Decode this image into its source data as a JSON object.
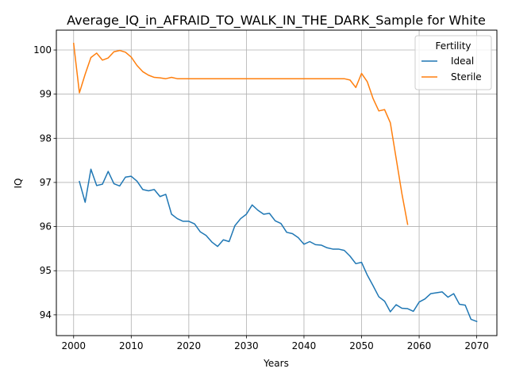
{
  "chart_data": {
    "type": "line",
    "title": "Average_IQ_in_AFRAID_TO_WALK_IN_THE_DARK_Sample for White",
    "xlabel": "Years",
    "ylabel": "IQ",
    "xlim": [
      1997,
      2073.5
    ],
    "ylim": [
      93.53,
      100.45
    ],
    "grid": true,
    "legend": {
      "title": "Fertility",
      "placement": "top-right"
    },
    "x_ticks": [
      2000,
      2010,
      2020,
      2030,
      2040,
      2050,
      2060,
      2070
    ],
    "y_ticks": [
      94,
      95,
      96,
      97,
      98,
      99,
      100
    ],
    "series": [
      {
        "name": "Ideal",
        "color": "#1f77b4",
        "x": [
          2001,
          2002,
          2003,
          2004,
          2005,
          2006,
          2007,
          2008,
          2009,
          2010,
          2011,
          2012,
          2013,
          2014,
          2015,
          2016,
          2017,
          2018,
          2019,
          2020,
          2021,
          2022,
          2023,
          2024,
          2025,
          2026,
          2027,
          2028,
          2029,
          2030,
          2031,
          2032,
          2033,
          2034,
          2035,
          2036,
          2037,
          2038,
          2039,
          2040,
          2041,
          2042,
          2043,
          2044,
          2045,
          2046,
          2047,
          2048,
          2049,
          2050,
          2051,
          2052,
          2053,
          2054,
          2055,
          2056,
          2057,
          2058,
          2059,
          2060,
          2061,
          2062,
          2063,
          2064,
          2065,
          2066,
          2067,
          2068,
          2069,
          2070
        ],
        "values": [
          97.02,
          96.55,
          97.3,
          96.93,
          96.96,
          97.25,
          96.97,
          96.92,
          97.12,
          97.14,
          97.03,
          96.84,
          96.81,
          96.84,
          96.68,
          96.73,
          96.28,
          96.18,
          96.12,
          96.12,
          96.06,
          95.88,
          95.8,
          95.65,
          95.55,
          95.7,
          95.66,
          96.02,
          96.18,
          96.28,
          96.49,
          96.37,
          96.28,
          96.3,
          96.13,
          96.07,
          95.87,
          95.84,
          95.75,
          95.6,
          95.66,
          95.59,
          95.58,
          95.52,
          95.49,
          95.49,
          95.46,
          95.33,
          95.16,
          95.19,
          94.9,
          94.66,
          94.41,
          94.31,
          94.07,
          94.23,
          94.15,
          94.14,
          94.08,
          94.29,
          94.36,
          94.48,
          94.5,
          94.52,
          94.4,
          94.48,
          94.24,
          94.22,
          93.9,
          93.85
        ]
      },
      {
        "name": "Sterile",
        "color": "#ff7f0e",
        "x": [
          2000,
          2001,
          2002,
          2003,
          2004,
          2005,
          2006,
          2007,
          2008,
          2009,
          2010,
          2011,
          2012,
          2013,
          2014,
          2015,
          2016,
          2017,
          2018,
          2019,
          2020,
          2021,
          2022,
          2023,
          2024,
          2025,
          2026,
          2027,
          2028,
          2029,
          2030,
          2031,
          2032,
          2033,
          2034,
          2035,
          2036,
          2037,
          2038,
          2039,
          2040,
          2041,
          2042,
          2043,
          2044,
          2045,
          2046,
          2047,
          2048,
          2049,
          2050,
          2051,
          2052,
          2053,
          2054,
          2055,
          2056,
          2057,
          2058
        ],
        "values": [
          100.15,
          99.03,
          99.45,
          99.83,
          99.93,
          99.77,
          99.82,
          99.96,
          99.99,
          99.95,
          99.84,
          99.65,
          99.51,
          99.43,
          99.38,
          99.37,
          99.35,
          99.38,
          99.35,
          99.35,
          99.35,
          99.35,
          99.35,
          99.35,
          99.35,
          99.35,
          99.35,
          99.35,
          99.35,
          99.35,
          99.35,
          99.35,
          99.35,
          99.35,
          99.35,
          99.35,
          99.35,
          99.35,
          99.35,
          99.35,
          99.35,
          99.35,
          99.35,
          99.35,
          99.35,
          99.35,
          99.35,
          99.35,
          99.32,
          99.15,
          99.47,
          99.28,
          98.9,
          98.62,
          98.65,
          98.35,
          97.55,
          96.75,
          96.05
        ]
      }
    ]
  }
}
